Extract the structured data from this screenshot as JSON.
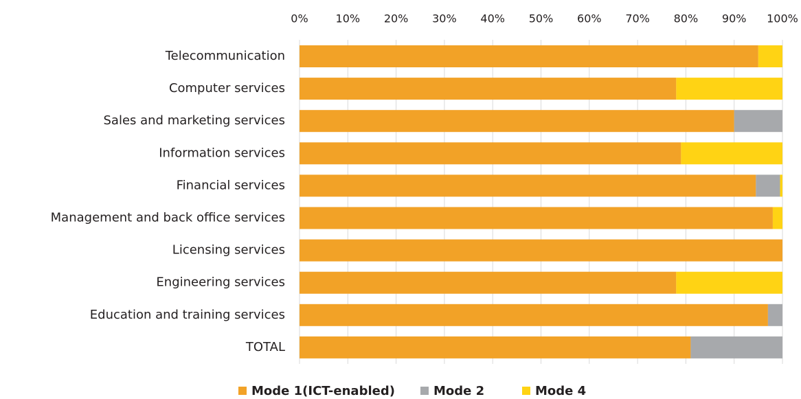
{
  "chart_data": {
    "type": "stacked-barh",
    "categories": [
      "Telecommunication",
      "Computer services",
      "Sales and marketing services",
      "Information services",
      "Financial services",
      "Management and back office services",
      "Licensing services",
      "Engineering services",
      "Education and training services",
      "TOTAL"
    ],
    "series": [
      {
        "name": "Mode 1(ICT-enabled)",
        "color": "#f2a227",
        "values": [
          95,
          78,
          90,
          79,
          94.5,
          98,
          100,
          78,
          97,
          81
        ]
      },
      {
        "name": "Mode 2",
        "color": "#a7a9ac",
        "values": [
          0,
          0,
          10,
          0,
          5,
          0,
          0,
          0,
          3,
          19
        ]
      },
      {
        "name": "Mode 4",
        "color": "#ffd314",
        "values": [
          5,
          22,
          0,
          21,
          0.5,
          2,
          0,
          22,
          0,
          0
        ]
      }
    ],
    "xlim": [
      0,
      100
    ],
    "xticks": [
      {
        "value": 0,
        "label": "0%"
      },
      {
        "value": 10,
        "label": "10%"
      },
      {
        "value": 20,
        "label": "20%"
      },
      {
        "value": 30,
        "label": "30%"
      },
      {
        "value": 40,
        "label": "40%"
      },
      {
        "value": 50,
        "label": "50%"
      },
      {
        "value": 60,
        "label": "60%"
      },
      {
        "value": 70,
        "label": "70%"
      },
      {
        "value": 80,
        "label": "80%"
      },
      {
        "value": 90,
        "label": "90%"
      },
      {
        "value": 100,
        "label": "100%"
      }
    ],
    "grid": true,
    "legend": "bottom"
  }
}
